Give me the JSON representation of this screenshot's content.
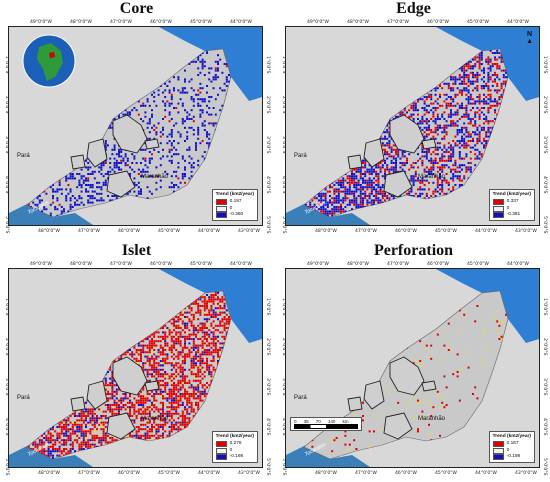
{
  "panels": [
    {
      "id": "core",
      "title": "Core",
      "legend": {
        "title": "Trend (km2/year)",
        "items": [
          {
            "label": "0.197",
            "color": "#e00000"
          },
          {
            "label": "0",
            "color": "#f2f2f2"
          },
          {
            "label": "-0.360",
            "color": "#1010c8"
          }
        ]
      }
    },
    {
      "id": "edge",
      "title": "Edge",
      "legend": {
        "title": "Trend (km2/year)",
        "items": [
          {
            "label": "0.337",
            "color": "#e00000"
          },
          {
            "label": "0",
            "color": "#f2f2f2"
          },
          {
            "label": "-0.381",
            "color": "#1010c8"
          }
        ]
      }
    },
    {
      "id": "islet",
      "title": "Islet",
      "legend": {
        "title": "Trend (km2/year)",
        "items": [
          {
            "label": "0.276",
            "color": "#e00000"
          },
          {
            "label": "0",
            "color": "#f2f2f2"
          },
          {
            "label": "-0.198",
            "color": "#1010c8"
          }
        ]
      }
    },
    {
      "id": "perforation",
      "title": "Perforation",
      "legend": {
        "title": "Trend (km2/year)",
        "items": [
          {
            "label": "0.167",
            "color": "#e00000"
          },
          {
            "label": "0",
            "color": "#f2f2f2"
          },
          {
            "label": "-0.198",
            "color": "#1010c8"
          }
        ]
      }
    }
  ],
  "places": {
    "para": "Pará",
    "maranhao": "Maranhão",
    "tocantins": "Tocantins"
  },
  "top_ticks": [
    "49°0'0\"W",
    "48°0'0\"W",
    "47°0'0\"W",
    "46°0'0\"W",
    "45°0'0\"W",
    "44°0'0\"W"
  ],
  "bottom_ticks": [
    "48°0'0\"W",
    "47°0'0\"W",
    "46°0'0\"W",
    "45°0'0\"W",
    "44°0'0\"W",
    "43°0'0\"W"
  ],
  "lat_ticks": [
    "1°0'0\"S",
    "2°0'0\"S",
    "3°0'0\"S",
    "4°0'0\"S",
    "5°0'0\"S"
  ],
  "north_label": "N",
  "scale": {
    "ticks": [
      "0",
      "35",
      "70",
      "140"
    ],
    "unit": "km"
  },
  "colors": {
    "ocean": "#2e7fd4",
    "land": "#d8d8d8",
    "positive": "#e00000",
    "negative": "#1010c8",
    "boundary": "#222222"
  }
}
